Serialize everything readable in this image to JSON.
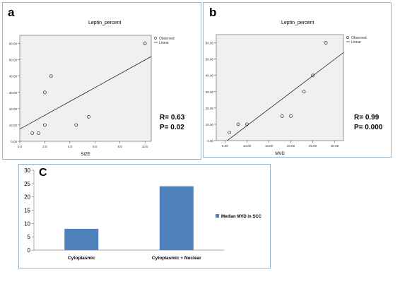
{
  "chart_data": [
    {
      "panel": "a",
      "type": "scatter",
      "title": "Leptin_percent",
      "xlabel": "SIZE",
      "ylabel": "",
      "xlim": [
        0,
        10.5
      ],
      "ylim": [
        0,
        65
      ],
      "xticks": [
        "0.0",
        "2.0",
        "4.0",
        "6.0",
        "8.0",
        "10.0"
      ],
      "yticks": [
        "0.00",
        "10.00",
        "20.00",
        "30.00",
        "40.00",
        "50.00",
        "60.00"
      ],
      "legend": [
        "Observed",
        "Linear"
      ],
      "legend_position": "top-right",
      "x": [
        1.0,
        1.5,
        2.0,
        2.0,
        2.5,
        4.5,
        5.5,
        10.0
      ],
      "y": [
        5,
        5,
        10,
        30,
        40,
        10,
        15,
        60
      ],
      "fit_line": [
        [
          0,
          7.5
        ],
        [
          10.5,
          52
        ]
      ],
      "stats": [
        "R=  0.63",
        "P= 0.02"
      ]
    },
    {
      "panel": "b",
      "type": "scatter",
      "title": "Leptin_percent",
      "xlabel": "MVD",
      "ylabel": "",
      "xlim": [
        3,
        32
      ],
      "ylim": [
        0,
        65
      ],
      "xticks": [
        "5.00",
        "10.00",
        "15.00",
        "20.00",
        "25.00",
        "30.00"
      ],
      "yticks": [
        "0.00",
        "10.00",
        "20.00",
        "30.00",
        "40.00",
        "50.00",
        "60.00"
      ],
      "legend": [
        "Observed",
        "Linear"
      ],
      "legend_position": "top-right",
      "x": [
        6,
        8,
        10,
        18,
        20,
        23,
        25,
        28
      ],
      "y": [
        5,
        10,
        10,
        15,
        15,
        30,
        40,
        60
      ],
      "fit_line": [
        [
          5,
          -1
        ],
        [
          32,
          54
        ]
      ],
      "stats": [
        "R=  0.99",
        "P= 0.000"
      ]
    },
    {
      "panel": "C",
      "type": "bar",
      "categories": [
        "Cytoplasmic",
        "Cytoplasmic + Nuclear"
      ],
      "series": [
        {
          "name": "Median MVD in SCC",
          "values": [
            8,
            24
          ],
          "color": "#4f81bd"
        }
      ],
      "ylim": [
        0,
        30
      ],
      "yticks": [
        "0",
        "5",
        "10",
        "15",
        "20",
        "25",
        "30"
      ],
      "legend_position": "right"
    }
  ],
  "colors": {
    "bar": "#4f81bd",
    "plot_bg": "#f0f0f0",
    "panel_border": "#9ab6cc"
  }
}
